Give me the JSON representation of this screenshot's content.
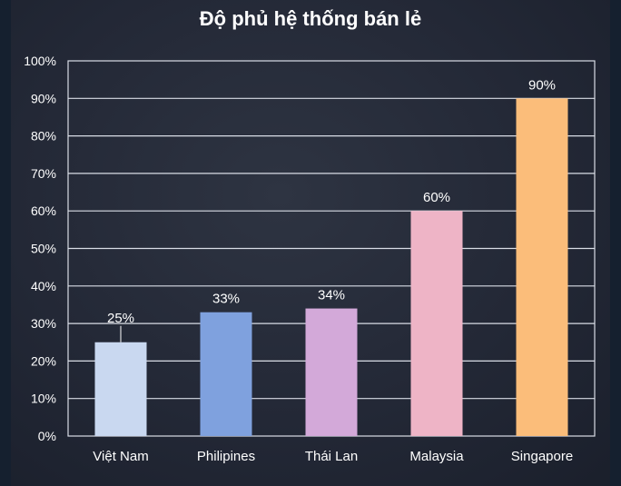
{
  "chart_data": {
    "type": "bar",
    "title": "Độ phủ hệ thống bán lẻ",
    "categories": [
      "Việt Nam",
      "Philipines",
      "Thái Lan",
      "Malaysia",
      "Singapore"
    ],
    "values": [
      25,
      33,
      34,
      60,
      90
    ],
    "data_labels": [
      "25%",
      "33%",
      "34%",
      "60%",
      "90%"
    ],
    "y_ticks": [
      "0%",
      "10%",
      "20%",
      "30%",
      "40%",
      "50%",
      "60%",
      "70%",
      "80%",
      "90%",
      "100%"
    ],
    "ylim": [
      0,
      100
    ],
    "grid": true,
    "legend": "none",
    "colors": [
      "#c9d8f0",
      "#7fa1de",
      "#d3a9d9",
      "#eeb4c6",
      "#fbbd7a"
    ]
  }
}
